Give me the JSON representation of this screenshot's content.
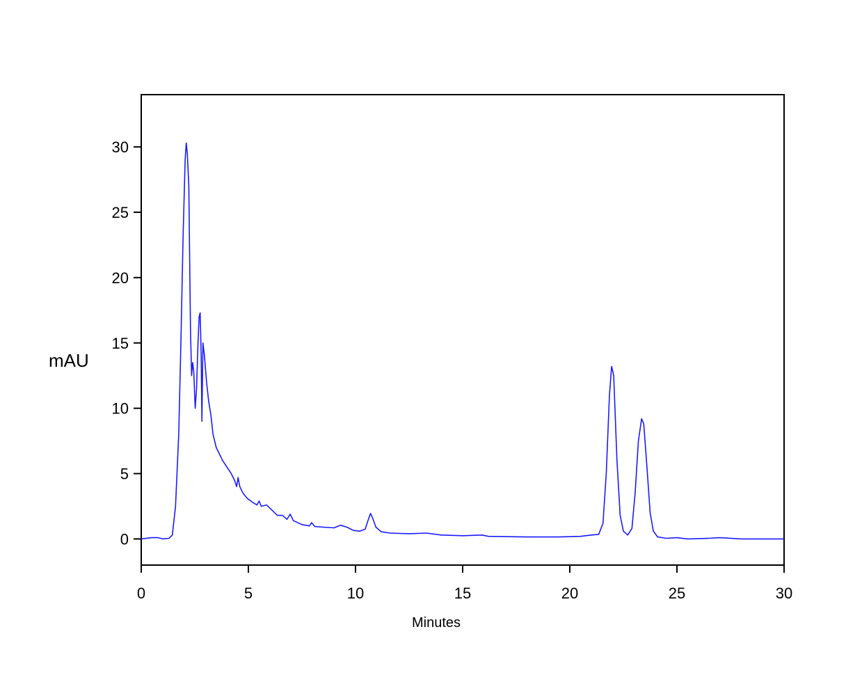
{
  "chart_data": {
    "type": "line",
    "title": "",
    "xlabel": "Minutes",
    "ylabel": "mAU",
    "xlim": [
      0,
      30
    ],
    "ylim": [
      -2,
      34
    ],
    "x_ticks": [
      "0",
      "5",
      "10",
      "15",
      "20",
      "25",
      "30"
    ],
    "y_ticks": [
      "0",
      "5",
      "10",
      "15",
      "20",
      "25",
      "30"
    ],
    "grid": false,
    "legend": "none",
    "line_color": "#1a1aff",
    "series": [
      {
        "points": [
          [
            0.0,
            0.0
          ],
          [
            0.5,
            0.1
          ],
          [
            0.8,
            0.1
          ],
          [
            1.0,
            0.0
          ],
          [
            1.3,
            0.05
          ],
          [
            1.45,
            0.3
          ],
          [
            1.6,
            2.5
          ],
          [
            1.75,
            8.0
          ],
          [
            1.85,
            15.0
          ],
          [
            1.95,
            23.0
          ],
          [
            2.05,
            29.0
          ],
          [
            2.1,
            30.3
          ],
          [
            2.15,
            29.5
          ],
          [
            2.22,
            27.0
          ],
          [
            2.3,
            16.0
          ],
          [
            2.35,
            12.5
          ],
          [
            2.4,
            13.5
          ],
          [
            2.45,
            12.8
          ],
          [
            2.52,
            10.0
          ],
          [
            2.58,
            11.5
          ],
          [
            2.65,
            15.0
          ],
          [
            2.7,
            17.0
          ],
          [
            2.75,
            17.3
          ],
          [
            2.8,
            14.0
          ],
          [
            2.83,
            9.0
          ],
          [
            2.88,
            15.0
          ],
          [
            2.95,
            14.0
          ],
          [
            3.05,
            12.0
          ],
          [
            3.15,
            10.5
          ],
          [
            3.25,
            9.5
          ],
          [
            3.35,
            8.0
          ],
          [
            3.5,
            7.0
          ],
          [
            3.65,
            6.5
          ],
          [
            3.8,
            6.0
          ],
          [
            4.0,
            5.5
          ],
          [
            4.2,
            5.0
          ],
          [
            4.35,
            4.5
          ],
          [
            4.45,
            4.0
          ],
          [
            4.52,
            4.7
          ],
          [
            4.6,
            4.0
          ],
          [
            4.75,
            3.5
          ],
          [
            4.95,
            3.1
          ],
          [
            5.2,
            2.8
          ],
          [
            5.4,
            2.6
          ],
          [
            5.5,
            2.9
          ],
          [
            5.6,
            2.5
          ],
          [
            5.85,
            2.6
          ],
          [
            6.1,
            2.2
          ],
          [
            6.35,
            1.8
          ],
          [
            6.6,
            1.8
          ],
          [
            6.8,
            1.5
          ],
          [
            6.95,
            1.9
          ],
          [
            7.1,
            1.4
          ],
          [
            7.5,
            1.1
          ],
          [
            7.85,
            1.0
          ],
          [
            7.95,
            1.25
          ],
          [
            8.1,
            0.95
          ],
          [
            8.5,
            0.9
          ],
          [
            9.0,
            0.85
          ],
          [
            9.3,
            1.05
          ],
          [
            9.6,
            0.9
          ],
          [
            9.9,
            0.65
          ],
          [
            10.2,
            0.6
          ],
          [
            10.45,
            0.75
          ],
          [
            10.6,
            1.5
          ],
          [
            10.7,
            1.95
          ],
          [
            10.8,
            1.6
          ],
          [
            10.95,
            0.9
          ],
          [
            11.2,
            0.55
          ],
          [
            11.6,
            0.45
          ],
          [
            12.5,
            0.4
          ],
          [
            13.3,
            0.45
          ],
          [
            14.0,
            0.3
          ],
          [
            15.0,
            0.25
          ],
          [
            15.9,
            0.3
          ],
          [
            16.2,
            0.2
          ],
          [
            18.0,
            0.15
          ],
          [
            19.5,
            0.15
          ],
          [
            20.5,
            0.2
          ],
          [
            21.0,
            0.3
          ],
          [
            21.35,
            0.35
          ],
          [
            21.55,
            1.2
          ],
          [
            21.7,
            5.0
          ],
          [
            21.85,
            11.0
          ],
          [
            21.95,
            13.2
          ],
          [
            22.05,
            12.5
          ],
          [
            22.2,
            6.0
          ],
          [
            22.35,
            1.8
          ],
          [
            22.5,
            0.6
          ],
          [
            22.7,
            0.3
          ],
          [
            22.9,
            0.8
          ],
          [
            23.05,
            3.5
          ],
          [
            23.2,
            7.5
          ],
          [
            23.35,
            9.2
          ],
          [
            23.45,
            8.8
          ],
          [
            23.6,
            5.5
          ],
          [
            23.75,
            2.0
          ],
          [
            23.9,
            0.6
          ],
          [
            24.1,
            0.15
          ],
          [
            24.5,
            0.05
          ],
          [
            25.0,
            0.1
          ],
          [
            25.5,
            0.0
          ],
          [
            26.5,
            0.05
          ],
          [
            27.0,
            0.1
          ],
          [
            28.0,
            0.0
          ],
          [
            29.0,
            0.0
          ],
          [
            30.0,
            0.0
          ]
        ]
      }
    ]
  }
}
